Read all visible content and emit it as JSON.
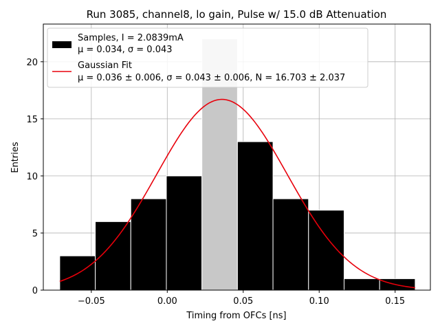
{
  "chart_data": {
    "type": "bar",
    "title": "Run 3085, channel8, lo gain, Pulse w/ 15.0 dB Attenuation",
    "xlabel": "Timing from OFCs [ns]",
    "ylabel": "Entries",
    "xlim": [
      -0.0816,
      0.1732
    ],
    "ylim": [
      0,
      23.3
    ],
    "grid": true,
    "x_ticks": [
      -0.05,
      0.0,
      0.05,
      0.1,
      0.15
    ],
    "x_tick_labels": [
      "−0.05",
      "0.00",
      "0.05",
      "0.10",
      "0.15"
    ],
    "y_ticks": [
      0,
      5,
      10,
      15,
      20
    ],
    "y_tick_labels": [
      "0",
      "5",
      "10",
      "15",
      "20"
    ],
    "histogram": {
      "name": "Samples, I = 2.0839mA",
      "stats_line": "μ = 0.034, σ = 0.043",
      "bin_edges": [
        -0.0708,
        -0.0474,
        -0.024,
        -0.0006,
        0.0228,
        0.0462,
        0.0696,
        0.093,
        0.1164,
        0.1398,
        0.1632
      ],
      "counts": [
        3,
        6,
        8,
        10,
        22,
        13,
        8,
        7,
        1,
        1
      ],
      "bar_color": "#000000",
      "highlight_bar_color": "#c8c8c8",
      "edge_color": "#ffffff"
    },
    "fit": {
      "name": "Gaussian Fit",
      "stats_line": "μ = 0.036 ± 0.006, σ = 0.043 ± 0.006, N = 16.703 ± 2.037",
      "mu": 0.036,
      "sigma": 0.043,
      "amplitude": 16.703,
      "x_range": [
        -0.0708,
        0.1632
      ],
      "color": "#e8000b"
    },
    "legend_position": "upper-left"
  }
}
